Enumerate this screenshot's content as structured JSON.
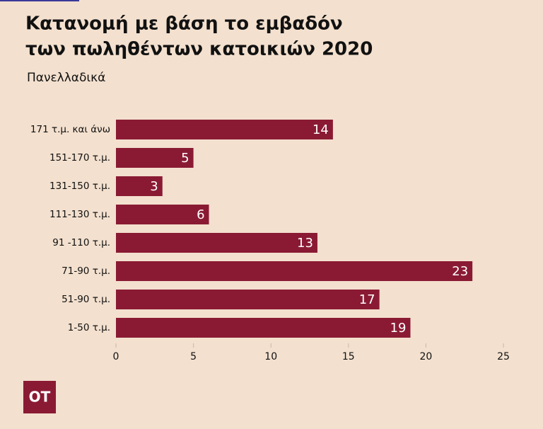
{
  "chart_data": {
    "type": "bar",
    "orientation": "horizontal",
    "title": [
      "Κατανομή με βάση το εμβαδόν",
      "των πωληθέντων κατοικιών 2020"
    ],
    "subtitle": "Πανελλαδικά",
    "categories": [
      "171 τ.μ. και άνω",
      "151-170 τ.μ.",
      "131-150 τ.μ.",
      "111-130 τ.μ.",
      "91 -110 τ.μ.",
      "71-90 τ.μ.",
      "51-90 τ.μ.",
      "1-50 τ.μ."
    ],
    "values": [
      14,
      5,
      3,
      6,
      13,
      23,
      17,
      19
    ],
    "color": "#8a1a34",
    "xlim": [
      0,
      25
    ],
    "xticks": [
      0,
      5,
      10,
      15,
      20,
      25
    ]
  },
  "logo": "OT"
}
